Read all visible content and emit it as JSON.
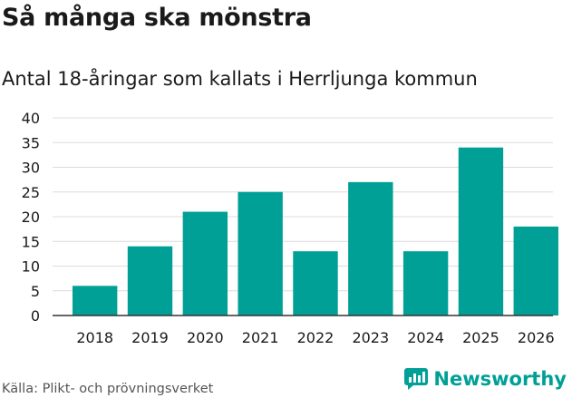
{
  "title": "Så många ska mönstra",
  "subtitle": "Antal 18-åringar som kallats i Herrljunga kommun",
  "source": "Källa: Plikt- och prövningsverket",
  "brand": {
    "name": "Newsworthy",
    "icon": "newsworthy-logo-icon"
  },
  "colors": {
    "bar": "#00a096",
    "grid": "#dcdcdc",
    "axis": "#333333",
    "text": "#1a1a1a",
    "brand": "#00a096"
  },
  "chart_data": {
    "type": "bar",
    "title": "Så många ska mönstra",
    "subtitle": "Antal 18-åringar som kallats i Herrljunga kommun",
    "xlabel": "",
    "ylabel": "",
    "categories": [
      "2018",
      "2019",
      "2020",
      "2021",
      "2022",
      "2023",
      "2024",
      "2025",
      "2026"
    ],
    "values": [
      6,
      14,
      21,
      25,
      13,
      27,
      13,
      34,
      18
    ],
    "ylim": [
      0,
      40
    ],
    "yticks": [
      0,
      5,
      10,
      15,
      20,
      25,
      30,
      35,
      40
    ],
    "grid": true
  }
}
